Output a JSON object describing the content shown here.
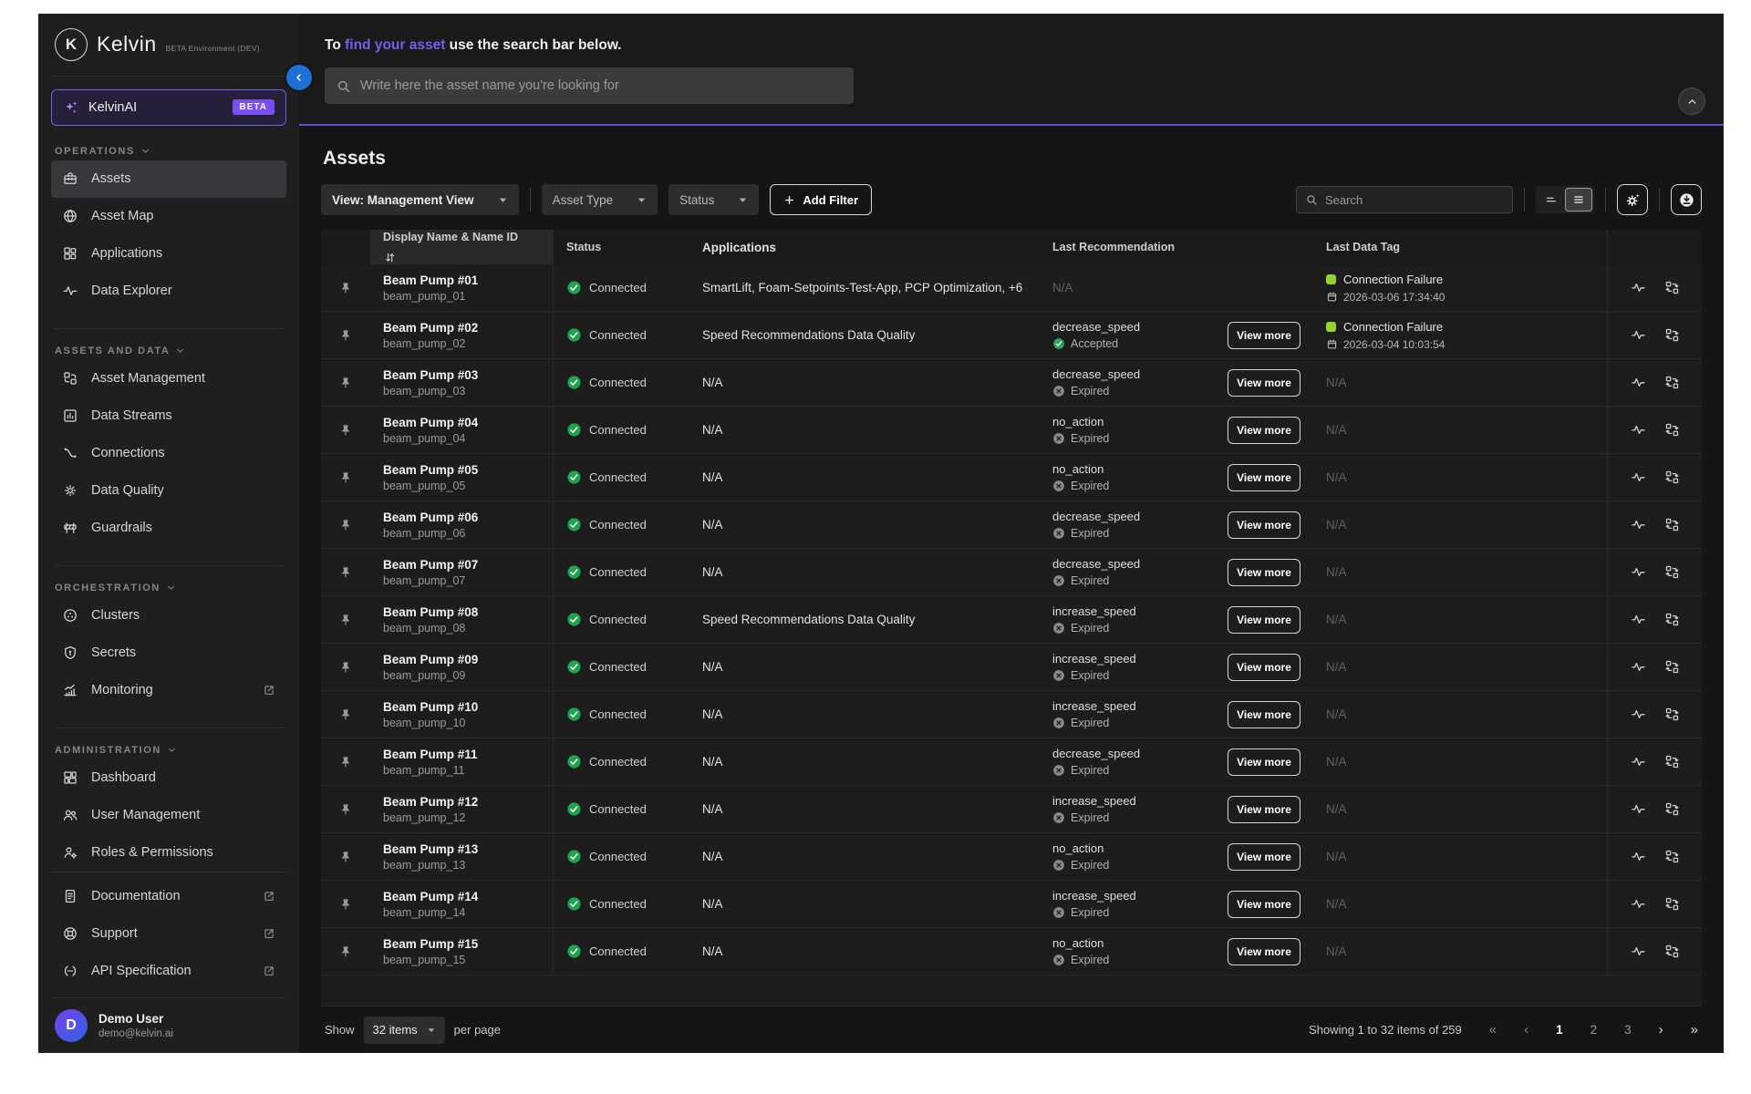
{
  "sidebar": {
    "logo": {
      "initial": "K",
      "brand": "Kelvin",
      "env": "BETA Environment (DEV)"
    },
    "ai_item": {
      "label": "KelvinAI",
      "badge": "BETA"
    },
    "sections": [
      {
        "label": "OPERATIONS",
        "items": [
          {
            "label": "Assets",
            "icon": "toolbox",
            "active": true
          },
          {
            "label": "Asset Map",
            "icon": "globe"
          },
          {
            "label": "Applications",
            "icon": "apps"
          },
          {
            "label": "Data Explorer",
            "icon": "pulse"
          }
        ]
      },
      {
        "label": "ASSETS AND DATA",
        "items": [
          {
            "label": "Asset Management",
            "icon": "asset-mgmt"
          },
          {
            "label": "Data Streams",
            "icon": "bar-chart"
          },
          {
            "label": "Connections",
            "icon": "connections"
          },
          {
            "label": "Data Quality",
            "icon": "gear-seal"
          },
          {
            "label": "Guardrails",
            "icon": "barrier"
          }
        ]
      },
      {
        "label": "ORCHESTRATION",
        "items": [
          {
            "label": "Clusters",
            "icon": "cluster"
          },
          {
            "label": "Secrets",
            "icon": "shield"
          },
          {
            "label": "Monitoring",
            "icon": "monitor",
            "external": true
          }
        ]
      },
      {
        "label": "ADMINISTRATION",
        "items": [
          {
            "label": "Dashboard",
            "icon": "dashboard"
          },
          {
            "label": "User Management",
            "icon": "users"
          },
          {
            "label": "Roles & Permissions",
            "icon": "role"
          }
        ]
      }
    ],
    "footer_items": [
      {
        "label": "Documentation",
        "icon": "doc",
        "external": true
      },
      {
        "label": "Support",
        "icon": "lifebuoy",
        "external": true
      },
      {
        "label": "API Specification",
        "icon": "api",
        "external": true
      }
    ],
    "user": {
      "initial": "D",
      "name": "Demo User",
      "email": "demo@kelvin.ai"
    }
  },
  "topbar": {
    "message_prefix": "To",
    "message_link": "find your asset",
    "message_suffix": "use the search bar below.",
    "search_placeholder": "Write here the asset name you're looking for"
  },
  "assets": {
    "title": "Assets",
    "filters": {
      "view": "View: Management View",
      "asset_type": "Asset Type",
      "status": "Status",
      "add_filter": "Add Filter"
    },
    "search_placeholder": "Search",
    "table": {
      "columns": {
        "name": "Display Name & Name ID",
        "status": "Status",
        "applications": "Applications",
        "recommendation": "Last Recommendation",
        "data_tag": "Last Data Tag"
      },
      "view_more_label": "View more",
      "na_label": "N/A",
      "rows": [
        {
          "name": "Beam Pump #01",
          "id": "beam_pump_01",
          "status": "Connected",
          "apps": "SmartLift, Foam-Setpoints-Test-App, PCP Optimization, +6",
          "rec": null,
          "tag": {
            "label": "Connection Failure",
            "date": "2026-03-06 17:34:40"
          }
        },
        {
          "name": "Beam Pump #02",
          "id": "beam_pump_02",
          "status": "Connected",
          "apps": "Speed Recommendations Data Quality",
          "rec": {
            "name": "decrease_speed",
            "state": "Accepted"
          },
          "tag": {
            "label": "Connection Failure",
            "date": "2026-03-04 10:03:54"
          }
        },
        {
          "name": "Beam Pump #03",
          "id": "beam_pump_03",
          "status": "Connected",
          "apps": "N/A",
          "rec": {
            "name": "decrease_speed",
            "state": "Expired"
          },
          "tag": null
        },
        {
          "name": "Beam Pump #04",
          "id": "beam_pump_04",
          "status": "Connected",
          "apps": "N/A",
          "rec": {
            "name": "no_action",
            "state": "Expired"
          },
          "tag": null
        },
        {
          "name": "Beam Pump #05",
          "id": "beam_pump_05",
          "status": "Connected",
          "apps": "N/A",
          "rec": {
            "name": "no_action",
            "state": "Expired"
          },
          "tag": null
        },
        {
          "name": "Beam Pump #06",
          "id": "beam_pump_06",
          "status": "Connected",
          "apps": "N/A",
          "rec": {
            "name": "decrease_speed",
            "state": "Expired"
          },
          "tag": null
        },
        {
          "name": "Beam Pump #07",
          "id": "beam_pump_07",
          "status": "Connected",
          "apps": "N/A",
          "rec": {
            "name": "decrease_speed",
            "state": "Expired"
          },
          "tag": null
        },
        {
          "name": "Beam Pump #08",
          "id": "beam_pump_08",
          "status": "Connected",
          "apps": "Speed Recommendations Data Quality",
          "rec": {
            "name": "increase_speed",
            "state": "Expired"
          },
          "tag": null
        },
        {
          "name": "Beam Pump #09",
          "id": "beam_pump_09",
          "status": "Connected",
          "apps": "N/A",
          "rec": {
            "name": "increase_speed",
            "state": "Expired"
          },
          "tag": null
        },
        {
          "name": "Beam Pump #10",
          "id": "beam_pump_10",
          "status": "Connected",
          "apps": "N/A",
          "rec": {
            "name": "increase_speed",
            "state": "Expired"
          },
          "tag": null
        },
        {
          "name": "Beam Pump #11",
          "id": "beam_pump_11",
          "status": "Connected",
          "apps": "N/A",
          "rec": {
            "name": "decrease_speed",
            "state": "Expired"
          },
          "tag": null
        },
        {
          "name": "Beam Pump #12",
          "id": "beam_pump_12",
          "status": "Connected",
          "apps": "N/A",
          "rec": {
            "name": "increase_speed",
            "state": "Expired"
          },
          "tag": null
        },
        {
          "name": "Beam Pump #13",
          "id": "beam_pump_13",
          "status": "Connected",
          "apps": "N/A",
          "rec": {
            "name": "no_action",
            "state": "Expired"
          },
          "tag": null
        },
        {
          "name": "Beam Pump #14",
          "id": "beam_pump_14",
          "status": "Connected",
          "apps": "N/A",
          "rec": {
            "name": "increase_speed",
            "state": "Expired"
          },
          "tag": null
        },
        {
          "name": "Beam Pump #15",
          "id": "beam_pump_15",
          "status": "Connected",
          "apps": "N/A",
          "rec": {
            "name": "no_action",
            "state": "Expired"
          },
          "tag": null
        }
      ]
    },
    "footer": {
      "show_label": "Show",
      "per_page_value": "32 items",
      "per_page_suffix": "per page",
      "summary": "Showing 1 to 32 items of 259",
      "first": "«",
      "prev": "‹",
      "pages": [
        "1",
        "2",
        "3"
      ],
      "current_page": "1",
      "next": "›",
      "last": "»"
    }
  },
  "colors": {
    "accent_purple": "#7a5cf0",
    "connected_green": "#1ea34f",
    "accepted_green": "#27ab58",
    "expired_gray": "#8a8a8a",
    "data_tag_lime": "#97d32f",
    "collapse_blue": "#1e6fd6"
  }
}
